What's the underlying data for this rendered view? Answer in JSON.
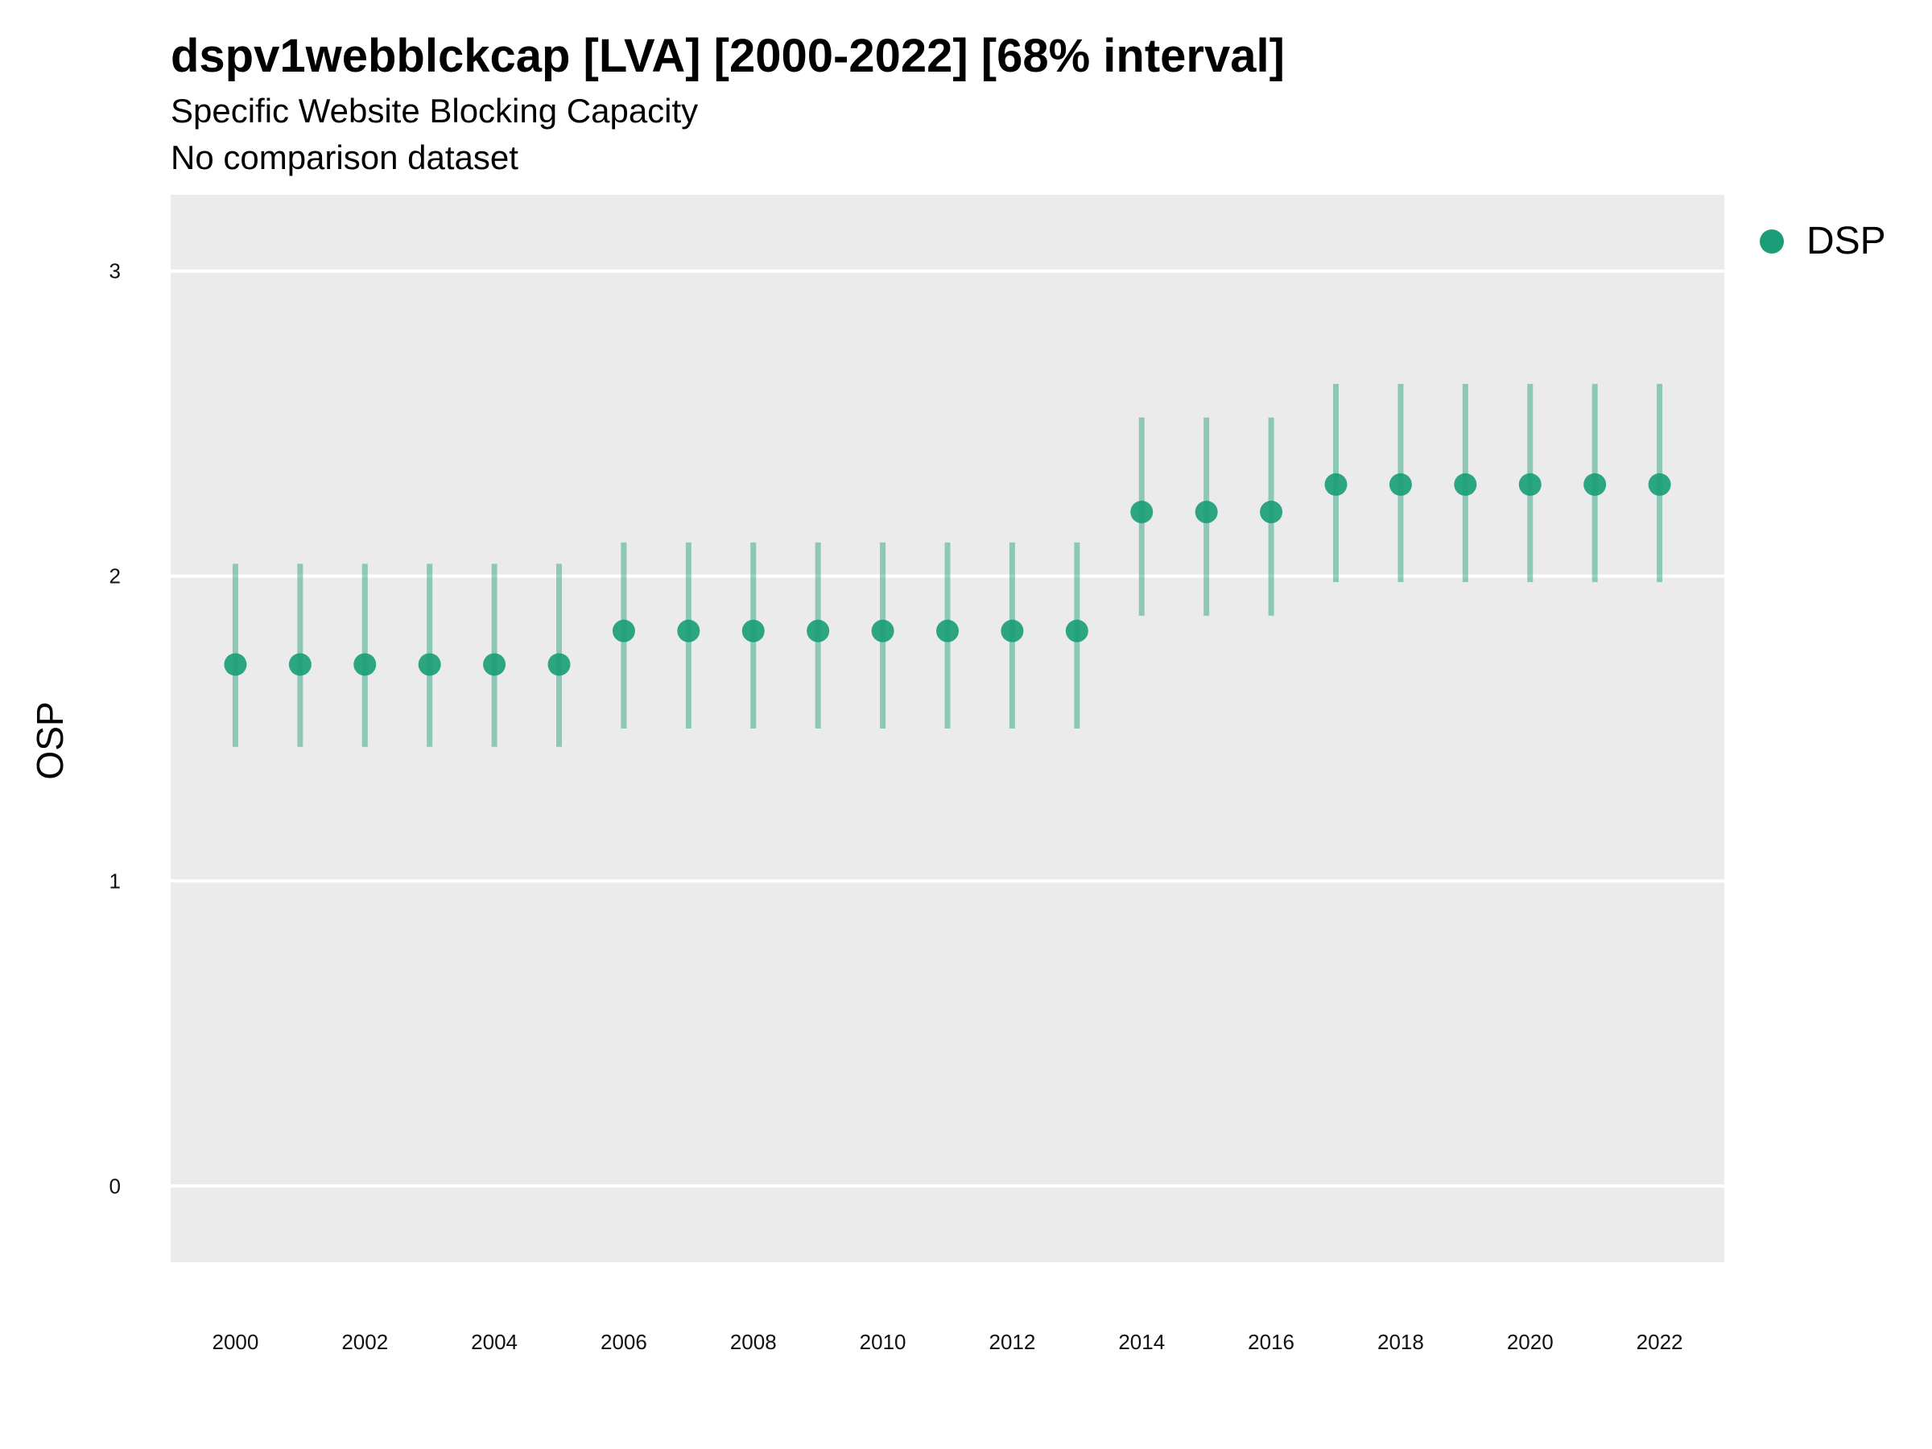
{
  "chart_data": {
    "type": "scatter",
    "title": "dspv1webblckcap [LVA] [2000-2022] [68% interval]",
    "subtitle": "Specific Website Blocking Capacity",
    "caption": "No comparison dataset",
    "xlabel": "",
    "ylabel": "OSP",
    "ylim": [
      -0.25,
      3.25
    ],
    "xlim": [
      1999,
      2023
    ],
    "y_ticks": [
      0,
      1,
      2,
      3
    ],
    "x_ticks": [
      2000,
      2002,
      2004,
      2006,
      2008,
      2010,
      2012,
      2014,
      2016,
      2018,
      2020,
      2022
    ],
    "grid": true,
    "legend_position": "right",
    "series": [
      {
        "name": "DSP",
        "color": "#1b9e77",
        "points": [
          {
            "x": 2000,
            "y": 1.71,
            "lower": 1.44,
            "upper": 2.04
          },
          {
            "x": 2001,
            "y": 1.71,
            "lower": 1.44,
            "upper": 2.04
          },
          {
            "x": 2002,
            "y": 1.71,
            "lower": 1.44,
            "upper": 2.04
          },
          {
            "x": 2003,
            "y": 1.71,
            "lower": 1.44,
            "upper": 2.04
          },
          {
            "x": 2004,
            "y": 1.71,
            "lower": 1.44,
            "upper": 2.04
          },
          {
            "x": 2005,
            "y": 1.71,
            "lower": 1.44,
            "upper": 2.04
          },
          {
            "x": 2006,
            "y": 1.82,
            "lower": 1.5,
            "upper": 2.11
          },
          {
            "x": 2007,
            "y": 1.82,
            "lower": 1.5,
            "upper": 2.11
          },
          {
            "x": 2008,
            "y": 1.82,
            "lower": 1.5,
            "upper": 2.11
          },
          {
            "x": 2009,
            "y": 1.82,
            "lower": 1.5,
            "upper": 2.11
          },
          {
            "x": 2010,
            "y": 1.82,
            "lower": 1.5,
            "upper": 2.11
          },
          {
            "x": 2011,
            "y": 1.82,
            "lower": 1.5,
            "upper": 2.11
          },
          {
            "x": 2012,
            "y": 1.82,
            "lower": 1.5,
            "upper": 2.11
          },
          {
            "x": 2013,
            "y": 1.82,
            "lower": 1.5,
            "upper": 2.11
          },
          {
            "x": 2014,
            "y": 2.21,
            "lower": 1.87,
            "upper": 2.52
          },
          {
            "x": 2015,
            "y": 2.21,
            "lower": 1.87,
            "upper": 2.52
          },
          {
            "x": 2016,
            "y": 2.21,
            "lower": 1.87,
            "upper": 2.52
          },
          {
            "x": 2017,
            "y": 2.3,
            "lower": 1.98,
            "upper": 2.63
          },
          {
            "x": 2018,
            "y": 2.3,
            "lower": 1.98,
            "upper": 2.63
          },
          {
            "x": 2019,
            "y": 2.3,
            "lower": 1.98,
            "upper": 2.63
          },
          {
            "x": 2020,
            "y": 2.3,
            "lower": 1.98,
            "upper": 2.63
          },
          {
            "x": 2021,
            "y": 2.3,
            "lower": 1.98,
            "upper": 2.63
          },
          {
            "x": 2022,
            "y": 2.3,
            "lower": 1.98,
            "upper": 2.63
          }
        ]
      }
    ]
  },
  "colors": {
    "panel_background": "#ebebeb",
    "grid_line": "#ffffff",
    "point": "#1b9e77"
  }
}
